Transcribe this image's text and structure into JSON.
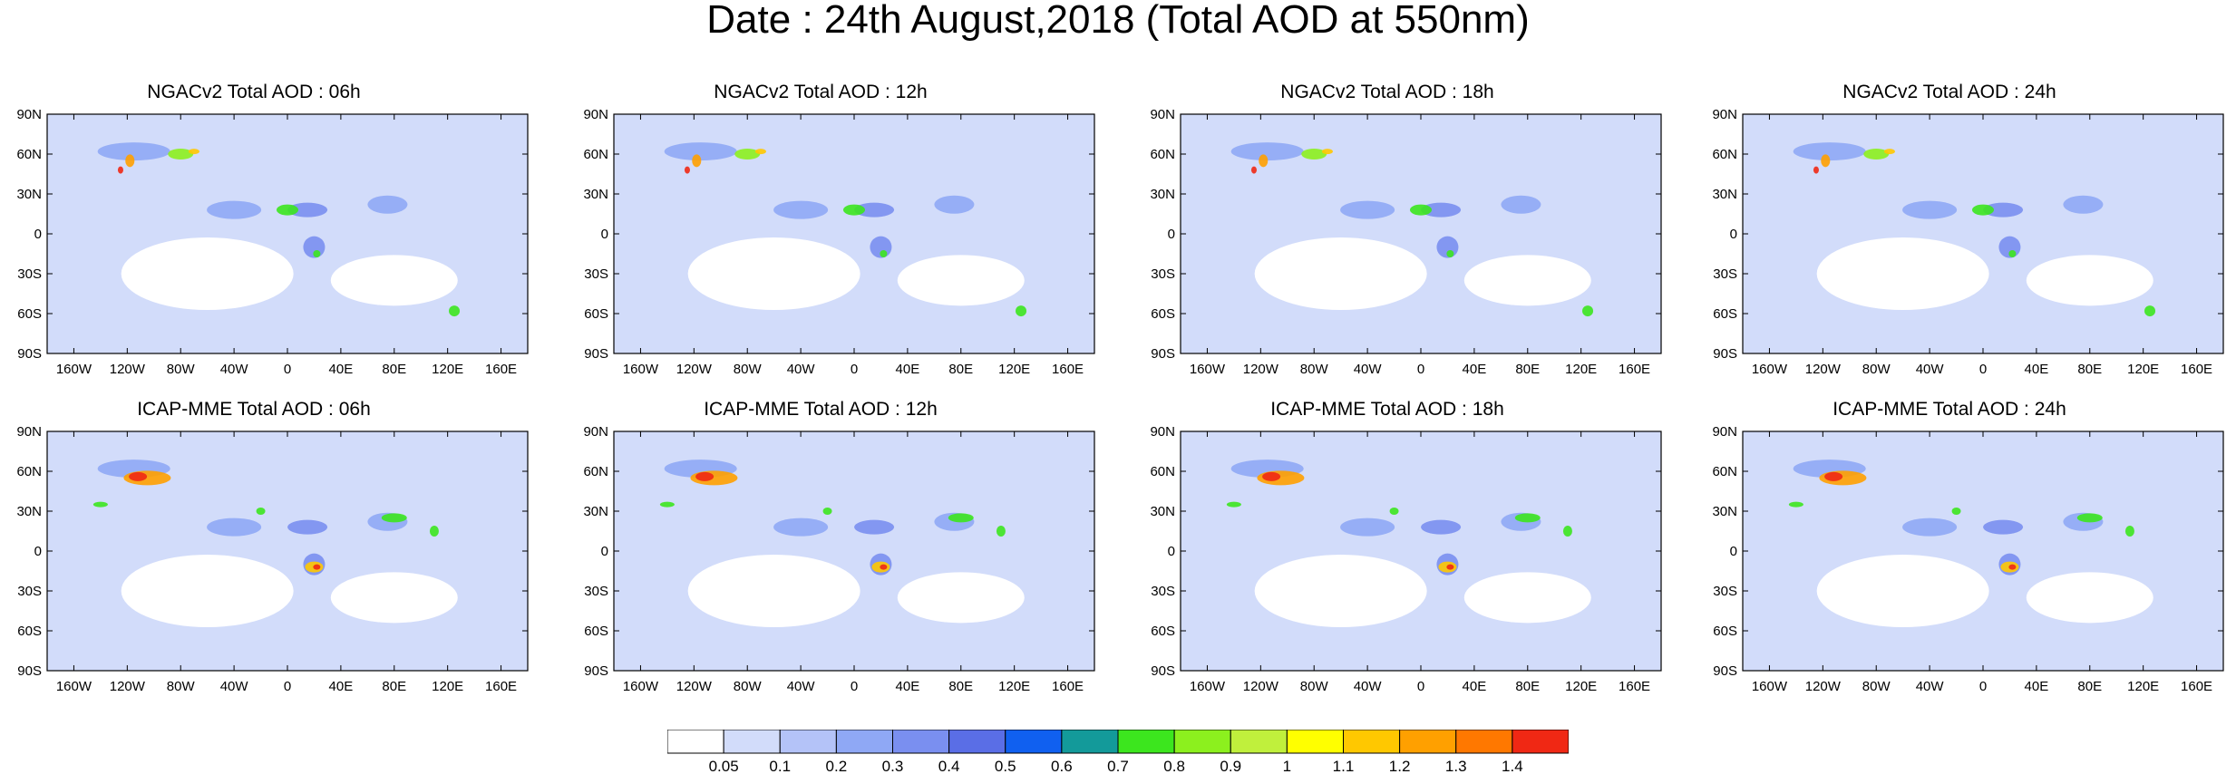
{
  "title": "Date : 24th August,2018 (Total AOD at 550nm)",
  "panels": [
    {
      "title": "NGACv2 Total AOD : 06h"
    },
    {
      "title": "NGACv2 Total AOD : 12h"
    },
    {
      "title": "NGACv2 Total AOD : 18h"
    },
    {
      "title": "NGACv2 Total AOD : 24h"
    },
    {
      "title": "ICAP-MME Total AOD : 06h"
    },
    {
      "title": "ICAP-MME Total AOD : 12h"
    },
    {
      "title": "ICAP-MME Total AOD : 18h"
    },
    {
      "title": "ICAP-MME Total AOD : 24h"
    }
  ],
  "lat_labels": [
    "90N",
    "60N",
    "30N",
    "0",
    "30S",
    "60S",
    "90S"
  ],
  "lon_labels": [
    "160W",
    "120W",
    "80W",
    "40W",
    "0",
    "40E",
    "80E",
    "120E",
    "160E"
  ],
  "colorbar": {
    "colors": [
      "#ffffff",
      "#d2dcfa",
      "#b4c3f8",
      "#8fa8f5",
      "#7a8ff0",
      "#5a6ee6",
      "#1060f0",
      "#139a9a",
      "#3ce61e",
      "#8cf01e",
      "#c0f03c",
      "#ffff00",
      "#ffc800",
      "#ffa000",
      "#ff7800",
      "#f02814"
    ],
    "labels": [
      "0.05",
      "0.1",
      "0.2",
      "0.3",
      "0.4",
      "0.5",
      "0.6",
      "0.7",
      "0.8",
      "0.9",
      "1",
      "1.1",
      "1.2",
      "1.3",
      "1.4"
    ]
  },
  "blobs": [
    {
      "panels": "all",
      "lon": -115,
      "lat": 62,
      "rx": 40,
      "ry": 10,
      "color": "#8fa8f5"
    },
    {
      "panels": "all",
      "lon": -40,
      "lat": 18,
      "rx": 30,
      "ry": 10,
      "color": "#8fa8f5"
    },
    {
      "panels": "all",
      "lon": 15,
      "lat": 18,
      "rx": 22,
      "ry": 8,
      "color": "#7a8ff0"
    },
    {
      "panels": "all",
      "lon": 20,
      "lat": -10,
      "rx": 12,
      "ry": 12,
      "color": "#7a8ff0"
    },
    {
      "panels": "all",
      "lon": 75,
      "lat": 22,
      "rx": 22,
      "ry": 10,
      "color": "#8fa8f5"
    },
    {
      "panels": "ngac",
      "lon": -118,
      "lat": 55,
      "rx": 5,
      "ry": 7,
      "color": "#ffa000"
    },
    {
      "panels": "ngac",
      "lon": -125,
      "lat": 48,
      "rx": 3,
      "ry": 4,
      "color": "#f02814"
    },
    {
      "panels": "ngac",
      "lon": -80,
      "lat": 60,
      "rx": 14,
      "ry": 6,
      "color": "#8cf01e"
    },
    {
      "panels": "ngac",
      "lon": -70,
      "lat": 62,
      "rx": 6,
      "ry": 3,
      "color": "#ffc800"
    },
    {
      "panels": "ngac",
      "lon": 0,
      "lat": 18,
      "rx": 12,
      "ry": 6,
      "color": "#3ce61e"
    },
    {
      "panels": "ngac",
      "lon": 22,
      "lat": -15,
      "rx": 4,
      "ry": 4,
      "color": "#3ce61e"
    },
    {
      "panels": "ngac",
      "lon": 125,
      "lat": -58,
      "rx": 6,
      "ry": 6,
      "color": "#3ce61e"
    },
    {
      "panels": "icap",
      "lon": -105,
      "lat": 55,
      "rx": 26,
      "ry": 8,
      "color": "#ffa000"
    },
    {
      "panels": "icap",
      "lon": -112,
      "lat": 56,
      "rx": 10,
      "ry": 5,
      "color": "#f02814"
    },
    {
      "panels": "icap",
      "lon": -140,
      "lat": 35,
      "rx": 8,
      "ry": 3,
      "color": "#3ce61e"
    },
    {
      "panels": "icap",
      "lon": -20,
      "lat": 30,
      "rx": 5,
      "ry": 4,
      "color": "#3ce61e"
    },
    {
      "panels": "icap",
      "lon": 20,
      "lat": -12,
      "rx": 10,
      "ry": 6,
      "color": "#ffc800"
    },
    {
      "panels": "icap",
      "lon": 22,
      "lat": -12,
      "rx": 4,
      "ry": 3,
      "color": "#f02814"
    },
    {
      "panels": "icap",
      "lon": 80,
      "lat": 25,
      "rx": 14,
      "ry": 5,
      "color": "#3ce61e"
    },
    {
      "panels": "icap",
      "lon": 110,
      "lat": 15,
      "rx": 5,
      "ry": 6,
      "color": "#3ce61e"
    }
  ]
}
